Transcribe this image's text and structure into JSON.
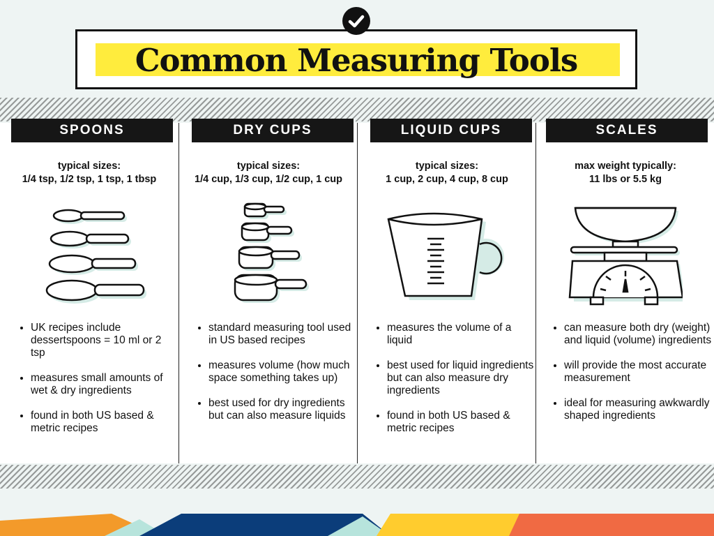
{
  "title": "Common Measuring Tools",
  "columns": [
    {
      "heading": "SPOONS",
      "sizes_label": "typical sizes:",
      "sizes_value": "1/4 tsp, 1/2 tsp, 1 tsp, 1 tbsp",
      "bullets": [
        "UK recipes include dessertspoons = 10 ml or 2 tsp",
        "measures small amounts of wet & dry ingredients",
        "found in both US based & metric recipes"
      ],
      "icon": "measuring-spoons-icon"
    },
    {
      "heading": "DRY CUPS",
      "sizes_label": "typical sizes:",
      "sizes_value": "1/4 cup, 1/3 cup, 1/2 cup, 1 cup",
      "bullets": [
        "standard measuring tool used in US based recipes",
        "measures volume (how much space something takes up)",
        "best used for dry ingredients but can also measure liquids"
      ],
      "icon": "dry-measuring-cups-icon"
    },
    {
      "heading": "LIQUID CUPS",
      "sizes_label": "typical sizes:",
      "sizes_value": "1 cup, 2 cup, 4 cup, 8 cup",
      "bullets": [
        "measures the volume of a liquid",
        "best used for liquid ingredients but can also measure dry ingredients",
        "found in both US based & metric recipes"
      ],
      "icon": "liquid-measuring-cup-icon"
    },
    {
      "heading": "SCALES",
      "sizes_label": "max weight typically:",
      "sizes_value": "11 lbs or 5.5 kg",
      "bullets": [
        "can measure both dry (weight) and liquid (volume) ingredients",
        "will provide the most accurate measurement",
        "ideal for measuring awkwardly shaped ingredients"
      ],
      "icon": "kitchen-scale-icon"
    }
  ],
  "colors": {
    "highlight": "#ffec3d",
    "header_bg": "#161616",
    "shadow": "#d5ebe6",
    "deco_blue": "#0b3d7a",
    "deco_orange": "#f39a2a",
    "deco_yellow": "#ffcc2e",
    "deco_mint": "#b7e4dc",
    "deco_red": "#f06a43"
  }
}
